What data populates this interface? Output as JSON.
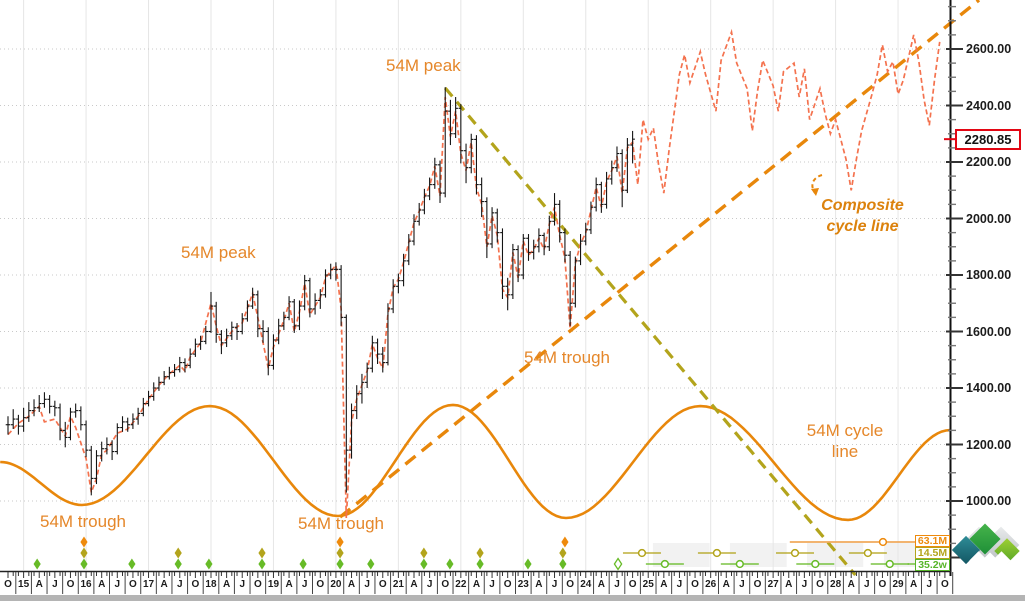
{
  "chart_data": {
    "type": "ohlc",
    "description": "Stock index monthly OHLC chart with 54-month cycle analysis and composite cycle projection to 2029",
    "y_axis": {
      "side": "right",
      "range_visible": [
        780,
        2780
      ],
      "major_tick_step": 200,
      "minor_tick_step": 50,
      "tick_labels": [
        "2600.00",
        "2400.00",
        "2200.00",
        "2000.00",
        "1800.00",
        "1600.00",
        "1400.00",
        "1200.00",
        "1000.00"
      ],
      "tick_values": [
        2600,
        2400,
        2200,
        2000,
        1800,
        1600,
        1400,
        1200,
        1000
      ],
      "grid": "dotted-horizontal"
    },
    "x_axis": {
      "start": "Oct 2014",
      "end": "Oct 2029",
      "quarter_labels": [
        "O",
        "15",
        "A",
        "J",
        "O",
        "16",
        "A",
        "J",
        "O",
        "17",
        "A",
        "J",
        "O",
        "18",
        "A",
        "J",
        "O",
        "19",
        "A",
        "J",
        "O",
        "20",
        "A",
        "J",
        "O",
        "21",
        "A",
        "J",
        "O",
        "22",
        "A",
        "J",
        "O",
        "23",
        "A",
        "J",
        "O",
        "24",
        "A",
        "J",
        "O",
        "25",
        "A",
        "J",
        "O",
        "26",
        "A",
        "J",
        "O",
        "27",
        "A",
        "J",
        "O",
        "28",
        "A",
        "J",
        "O",
        "29",
        "A",
        "J",
        "O"
      ],
      "year_gridlines_at_months": [
        3,
        15,
        27,
        39,
        51,
        63,
        75,
        87,
        99,
        111,
        123,
        135,
        147,
        159,
        171
      ]
    },
    "last_price": {
      "value": "2280.85",
      "numeric": 2280.85,
      "flag_color": "#e30613"
    },
    "price_bars_monthly_hlc": [
      [
        1300,
        1235,
        1270
      ],
      [
        1325,
        1255,
        1290
      ],
      [
        1305,
        1235,
        1265
      ],
      [
        1330,
        1245,
        1295
      ],
      [
        1350,
        1280,
        1320
      ],
      [
        1360,
        1300,
        1330
      ],
      [
        1375,
        1315,
        1345
      ],
      [
        1385,
        1330,
        1360
      ],
      [
        1375,
        1310,
        1335
      ],
      [
        1355,
        1300,
        1330
      ],
      [
        1345,
        1215,
        1250
      ],
      [
        1280,
        1190,
        1225
      ],
      [
        1330,
        1215,
        1315
      ],
      [
        1345,
        1295,
        1320
      ],
      [
        1335,
        1250,
        1270
      ],
      [
        1285,
        1155,
        1180
      ],
      [
        1195,
        1020,
        1080
      ],
      [
        1180,
        1060,
        1160
      ],
      [
        1210,
        1140,
        1185
      ],
      [
        1225,
        1165,
        1200
      ],
      [
        1215,
        1145,
        1175
      ],
      [
        1275,
        1165,
        1260
      ],
      [
        1300,
        1245,
        1280
      ],
      [
        1295,
        1245,
        1270
      ],
      [
        1310,
        1255,
        1290
      ],
      [
        1330,
        1270,
        1310
      ],
      [
        1365,
        1300,
        1345
      ],
      [
        1390,
        1335,
        1370
      ],
      [
        1420,
        1355,
        1400
      ],
      [
        1440,
        1390,
        1420
      ],
      [
        1460,
        1410,
        1440
      ],
      [
        1475,
        1430,
        1455
      ],
      [
        1485,
        1440,
        1465
      ],
      [
        1510,
        1455,
        1490
      ],
      [
        1505,
        1455,
        1480
      ],
      [
        1540,
        1470,
        1520
      ],
      [
        1575,
        1510,
        1555
      ],
      [
        1585,
        1535,
        1565
      ],
      [
        1620,
        1555,
        1600
      ],
      [
        1740,
        1595,
        1690
      ],
      [
        1705,
        1560,
        1590
      ],
      [
        1605,
        1520,
        1560
      ],
      [
        1610,
        1545,
        1585
      ],
      [
        1635,
        1570,
        1615
      ],
      [
        1630,
        1570,
        1600
      ],
      [
        1665,
        1590,
        1645
      ],
      [
        1710,
        1635,
        1690
      ],
      [
        1755,
        1680,
        1730
      ],
      [
        1745,
        1580,
        1610
      ],
      [
        1640,
        1560,
        1600
      ],
      [
        1615,
        1445,
        1480
      ],
      [
        1590,
        1465,
        1570
      ],
      [
        1645,
        1555,
        1620
      ],
      [
        1670,
        1605,
        1650
      ],
      [
        1725,
        1640,
        1705
      ],
      [
        1715,
        1595,
        1620
      ],
      [
        1710,
        1605,
        1690
      ],
      [
        1800,
        1675,
        1780
      ],
      [
        1790,
        1650,
        1680
      ],
      [
        1735,
        1660,
        1710
      ],
      [
        1750,
        1680,
        1730
      ],
      [
        1820,
        1720,
        1800
      ],
      [
        1840,
        1785,
        1820
      ],
      [
        1845,
        1780,
        1820
      ],
      [
        1835,
        1620,
        1650
      ],
      [
        1660,
        1030,
        1180
      ],
      [
        1345,
        1150,
        1320
      ],
      [
        1410,
        1290,
        1380
      ],
      [
        1450,
        1345,
        1420
      ],
      [
        1490,
        1400,
        1470
      ],
      [
        1585,
        1455,
        1560
      ],
      [
        1575,
        1485,
        1520
      ],
      [
        1545,
        1455,
        1490
      ],
      [
        1700,
        1480,
        1680
      ],
      [
        1785,
        1665,
        1760
      ],
      [
        1805,
        1735,
        1780
      ],
      [
        1875,
        1760,
        1850
      ],
      [
        1945,
        1835,
        1920
      ],
      [
        2015,
        1905,
        1990
      ],
      [
        2055,
        1975,
        2030
      ],
      [
        2105,
        2015,
        2080
      ],
      [
        2145,
        2065,
        2120
      ],
      [
        2215,
        2105,
        2190
      ],
      [
        2205,
        2055,
        2090
      ],
      [
        2465,
        2075,
        2380
      ],
      [
        2420,
        2260,
        2300
      ],
      [
        2430,
        2285,
        2390
      ],
      [
        2405,
        2195,
        2240
      ],
      [
        2265,
        2125,
        2180
      ],
      [
        2300,
        2160,
        2280
      ],
      [
        2295,
        2085,
        2120
      ],
      [
        2145,
        2005,
        2060
      ],
      [
        2075,
        1860,
        1910
      ],
      [
        2040,
        1895,
        2020
      ],
      [
        2035,
        1915,
        1950
      ],
      [
        1965,
        1715,
        1760
      ],
      [
        1790,
        1675,
        1730
      ],
      [
        1910,
        1715,
        1890
      ],
      [
        1905,
        1775,
        1800
      ],
      [
        1945,
        1785,
        1930
      ],
      [
        1945,
        1850,
        1880
      ],
      [
        1925,
        1855,
        1900
      ],
      [
        1965,
        1880,
        1940
      ],
      [
        1950,
        1870,
        1900
      ],
      [
        2010,
        1885,
        1990
      ],
      [
        2090,
        1975,
        2050
      ],
      [
        2065,
        1915,
        1950
      ],
      [
        1965,
        1845,
        1870
      ],
      [
        1885,
        1620,
        1700
      ],
      [
        1865,
        1685,
        1850
      ],
      [
        1945,
        1835,
        1920
      ],
      [
        1985,
        1905,
        1960
      ],
      [
        2060,
        1945,
        2040
      ],
      [
        2145,
        2025,
        2120
      ],
      [
        2130,
        2020,
        2050
      ],
      [
        2165,
        2035,
        2140
      ],
      [
        2205,
        2120,
        2180
      ],
      [
        2255,
        2165,
        2230
      ],
      [
        2245,
        2040,
        2100
      ],
      [
        2285,
        2090,
        2260
      ],
      [
        2310,
        2195,
        2280.85
      ]
    ],
    "composite_model_line": {
      "style": "dashed",
      "color": "#f4724e",
      "points_month_price": [
        [
          0,
          1235
        ],
        [
          2,
          1275
        ],
        [
          4,
          1300
        ],
        [
          6,
          1335
        ],
        [
          7,
          1280
        ],
        [
          9,
          1290
        ],
        [
          11,
          1230
        ],
        [
          12,
          1300
        ],
        [
          13,
          1260
        ],
        [
          15,
          1150
        ],
        [
          16,
          1030
        ],
        [
          17,
          1080
        ],
        [
          18,
          1165
        ],
        [
          19,
          1180
        ],
        [
          21,
          1240
        ],
        [
          23,
          1255
        ],
        [
          25,
          1300
        ],
        [
          27,
          1360
        ],
        [
          29,
          1410
        ],
        [
          31,
          1450
        ],
        [
          33,
          1480
        ],
        [
          34,
          1460
        ],
        [
          35,
          1510
        ],
        [
          37,
          1560
        ],
        [
          39,
          1700
        ],
        [
          40,
          1620
        ],
        [
          41,
          1550
        ],
        [
          43,
          1600
        ],
        [
          45,
          1630
        ],
        [
          47,
          1735
        ],
        [
          48,
          1650
        ],
        [
          50,
          1470
        ],
        [
          51,
          1545
        ],
        [
          53,
          1640
        ],
        [
          54,
          1700
        ],
        [
          55,
          1600
        ],
        [
          56,
          1670
        ],
        [
          57,
          1770
        ],
        [
          58,
          1660
        ],
        [
          60,
          1720
        ],
        [
          61,
          1790
        ],
        [
          63,
          1835
        ],
        [
          64,
          1680
        ],
        [
          65,
          940
        ],
        [
          66,
          1280
        ],
        [
          67,
          1360
        ],
        [
          68,
          1410
        ],
        [
          69,
          1460
        ],
        [
          70,
          1555
        ],
        [
          71,
          1505
        ],
        [
          72,
          1470
        ],
        [
          73,
          1665
        ],
        [
          74,
          1755
        ],
        [
          75,
          1785
        ],
        [
          76,
          1845
        ],
        [
          77,
          1915
        ],
        [
          78,
          1985
        ],
        [
          79,
          2025
        ],
        [
          80,
          2075
        ],
        [
          81,
          2115
        ],
        [
          82,
          2185
        ],
        [
          83,
          2080
        ],
        [
          84,
          2430
        ],
        [
          85,
          2290
        ],
        [
          86,
          2380
        ],
        [
          87,
          2230
        ],
        [
          88,
          2170
        ],
        [
          89,
          2270
        ],
        [
          90,
          2110
        ],
        [
          91,
          2050
        ],
        [
          92,
          1900
        ],
        [
          93,
          2010
        ],
        [
          94,
          1940
        ],
        [
          95,
          1750
        ],
        [
          96,
          1720
        ],
        [
          97,
          1880
        ],
        [
          98,
          1790
        ],
        [
          99,
          1920
        ],
        [
          100,
          1870
        ],
        [
          101,
          1890
        ],
        [
          102,
          1930
        ],
        [
          103,
          1890
        ],
        [
          104,
          1980
        ],
        [
          105,
          2040
        ],
        [
          106,
          1940
        ],
        [
          107,
          1860
        ],
        [
          108,
          1610
        ],
        [
          109,
          1840
        ],
        [
          110,
          1910
        ],
        [
          111,
          1950
        ],
        [
          112,
          2030
        ],
        [
          113,
          2110
        ],
        [
          114,
          2040
        ],
        [
          115,
          2130
        ],
        [
          116,
          2170
        ],
        [
          117,
          2220
        ],
        [
          118,
          2090
        ],
        [
          119,
          2250
        ],
        [
          120,
          2270
        ],
        [
          121,
          2120
        ],
        [
          122,
          2350
        ],
        [
          123,
          2280
        ],
        [
          124,
          2320
        ],
        [
          125,
          2190
        ],
        [
          126,
          2090
        ],
        [
          127,
          2240
        ],
        [
          129,
          2510
        ],
        [
          130,
          2580
        ],
        [
          131,
          2480
        ],
        [
          133,
          2590
        ],
        [
          134,
          2510
        ],
        [
          136,
          2380
        ],
        [
          137,
          2560
        ],
        [
          139,
          2660
        ],
        [
          140,
          2550
        ],
        [
          142,
          2460
        ],
        [
          143,
          2310
        ],
        [
          144,
          2450
        ],
        [
          145,
          2560
        ],
        [
          147,
          2470
        ],
        [
          148,
          2380
        ],
        [
          149,
          2520
        ],
        [
          151,
          2550
        ],
        [
          152,
          2430
        ],
        [
          153,
          2530
        ],
        [
          154,
          2350
        ],
        [
          156,
          2460
        ],
        [
          157,
          2370
        ],
        [
          158,
          2300
        ],
        [
          159,
          2350
        ],
        [
          161,
          2210
        ],
        [
          162,
          2100
        ],
        [
          163,
          2210
        ],
        [
          164,
          2310
        ],
        [
          166,
          2440
        ],
        [
          167,
          2510
        ],
        [
          168,
          2615
        ],
        [
          169,
          2520
        ],
        [
          170,
          2555
        ],
        [
          171,
          2440
        ],
        [
          172,
          2490
        ],
        [
          174,
          2650
        ],
        [
          175,
          2555
        ],
        [
          176,
          2420
        ],
        [
          177,
          2330
        ],
        [
          178,
          2490
        ],
        [
          179,
          2625
        ]
      ]
    },
    "cycle_54m_sine_line": {
      "style": "solid",
      "color": "#e8870b",
      "extrema_month_price": [
        [
          -1.5,
          1138
        ],
        [
          14.2,
          986
        ],
        [
          38.8,
          1336
        ],
        [
          63.4,
          947
        ],
        [
          85.5,
          1340
        ],
        [
          107.2,
          940
        ],
        [
          133,
          1336
        ],
        [
          161.4,
          933
        ],
        [
          181,
          1251
        ]
      ]
    },
    "composite_trend_line": {
      "style": "dashed",
      "color": "#e8870b",
      "from": [
        63.8,
        943
      ],
      "to": [
        182.5,
        2713
      ]
    },
    "declining_trend_line": {
      "style": "dashed",
      "color": "#b3a41c",
      "from": [
        84,
        2462
      ],
      "to": [
        163.3,
        727
      ]
    },
    "cycle_markers": {
      "rows": [
        {
          "label": "63.1M",
          "color": "#ee8a0c",
          "diamonds_m": [
            14.6,
            63.8,
            107
          ],
          "future_line_m": [
            150.2,
            180.4
          ],
          "future_circles_m": [
            168.1
          ]
        },
        {
          "label": "14.5M",
          "color": "#b3a41c",
          "diamonds_m": [
            14.6,
            32.7,
            48.8,
            63.8,
            79.9,
            90.7,
            106.6
          ],
          "future_circles_m": [
            121.8,
            136.2,
            151.2,
            165.2
          ]
        },
        {
          "label": "35.2w",
          "color": "#67bb27",
          "diamonds_m": [
            5.6,
            14.6,
            23.8,
            32.7,
            38.6,
            48.8,
            56.7,
            63.8,
            69.7,
            79.9,
            84.9,
            90.7,
            99.9,
            106.6
          ],
          "hollow_diamonds_m": [
            117.2
          ],
          "future_circles_m": [
            126.2,
            140.6,
            155.1,
            169.4,
            176.5
          ]
        }
      ],
      "future_highlight_bands_m": [
        [
          123.9,
          134.8
        ],
        [
          138.7,
          149.6
        ],
        [
          153.5,
          164.3
        ],
        [
          168.3,
          179.1
        ]
      ]
    },
    "legend": {
      "items": [
        {
          "label": "63.1M"
        },
        {
          "label": "14.5M"
        },
        {
          "label": "35.2w"
        }
      ]
    }
  },
  "annotations": {
    "peak_top": {
      "text": "54M peak"
    },
    "peak_left": {
      "text": "54M peak"
    },
    "trough_left": {
      "text": "54M trough"
    },
    "trough_mid": {
      "text": "54M trough"
    },
    "trough_right": {
      "text": "54M trough"
    },
    "composite_label": {
      "line1": "Composite",
      "line2": "cycle line"
    },
    "cycle54_label": {
      "line1": "54M cycle",
      "line2": "line"
    }
  },
  "price_flag": {
    "value": "2280.85"
  },
  "watermark": {
    "icon": "diamond-wave-logo"
  }
}
